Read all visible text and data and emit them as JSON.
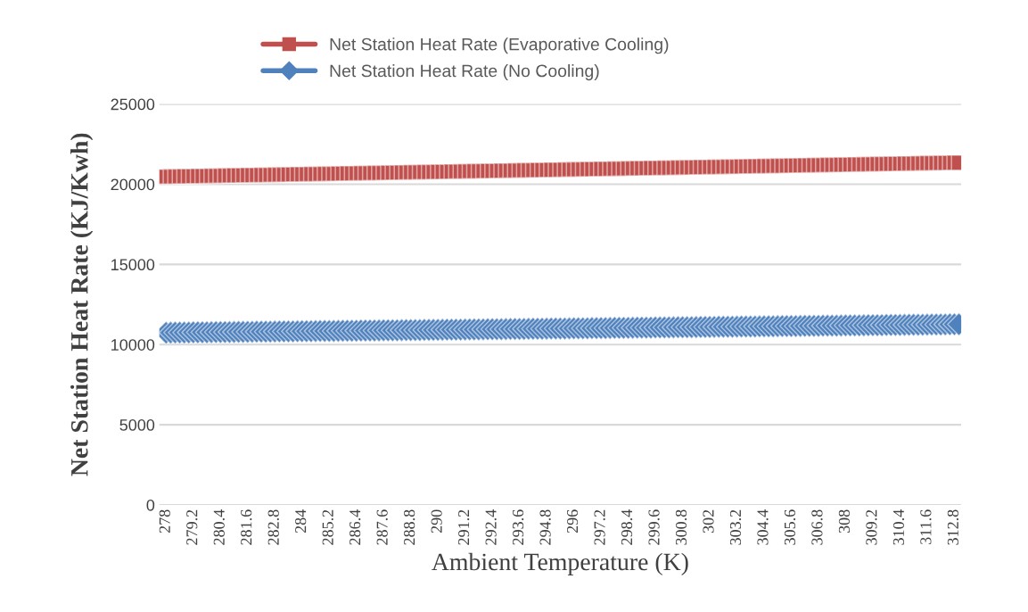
{
  "chart_data": {
    "type": "scatter",
    "xlabel": "Ambient Temperature (K)",
    "ylabel": "Net Station Heat Rate (KJ/Kwh)",
    "categories": [
      "278",
      null,
      null,
      null,
      null,
      null,
      "279.2",
      null,
      null,
      null,
      null,
      null,
      "280.4",
      null,
      null,
      null,
      null,
      null,
      "281.6",
      null,
      null,
      null,
      null,
      null,
      "282.8",
      null,
      null,
      null,
      null,
      null,
      "284",
      null,
      null,
      null,
      null,
      null,
      "285.2",
      null,
      null,
      null,
      null,
      null,
      "286.4",
      null,
      null,
      null,
      null,
      null,
      "287.6",
      null,
      null,
      null,
      null,
      null,
      "288.8",
      null,
      null,
      null,
      null,
      null,
      "290",
      null,
      null,
      null,
      null,
      null,
      "291.2",
      null,
      null,
      null,
      null,
      null,
      "292.4",
      null,
      null,
      null,
      null,
      null,
      "293.6",
      null,
      null,
      null,
      null,
      null,
      "294.8",
      null,
      null,
      null,
      null,
      null,
      "296",
      null,
      null,
      null,
      null,
      null,
      "297.2",
      null,
      null,
      null,
      null,
      null,
      "298.4",
      null,
      null,
      null,
      null,
      null,
      "299.6",
      null,
      null,
      null,
      null,
      null,
      "300.8",
      null,
      null,
      null,
      null,
      null,
      "302",
      null,
      null,
      null,
      null,
      null,
      "303.2",
      null,
      null,
      null,
      null,
      null,
      "304.4",
      null,
      null,
      null,
      null,
      null,
      "305.6",
      null,
      null,
      null,
      null,
      null,
      "306.8",
      null,
      null,
      null,
      null,
      null,
      "308",
      null,
      null,
      null,
      null,
      null,
      "309.2",
      null,
      null,
      null,
      null,
      null,
      "310.4",
      null,
      null,
      null,
      null,
      null,
      "311.6",
      null,
      null,
      null,
      null,
      null,
      "312.8",
      null
    ],
    "series": [
      {
        "name": "Net Station Heat Rate (Evaporative Cooling)",
        "color": "#c0504d",
        "marker": "square",
        "values": [
          20470,
          20475,
          20480,
          20485,
          20490,
          20495,
          20500,
          20505,
          20510,
          20515,
          20520,
          20525,
          20530,
          20535,
          20540,
          20545,
          20550,
          20555,
          20560,
          20565,
          20570,
          20575,
          20580,
          20585,
          20590,
          20595,
          20600,
          20605,
          20610,
          20615,
          20620,
          20625,
          20630,
          20635,
          20640,
          20645,
          20650,
          20655,
          20660,
          20665,
          20670,
          20675,
          20680,
          20685,
          20690,
          20695,
          20700,
          20705,
          20710,
          20715,
          20720,
          20725,
          20730,
          20735,
          20740,
          20745,
          20750,
          20755,
          20760,
          20765,
          20770,
          20775,
          20780,
          20785,
          20790,
          20795,
          20800,
          20805,
          20810,
          20815,
          20820,
          20825,
          20830,
          20835,
          20840,
          20845,
          20850,
          20855,
          20860,
          20865,
          20870,
          20875,
          20880,
          20885,
          20890,
          20895,
          20900,
          20905,
          20910,
          20915,
          20920,
          20925,
          20930,
          20935,
          20940,
          20945,
          20950,
          20955,
          20960,
          20965,
          20970,
          20975,
          20980,
          20985,
          20990,
          20995,
          21000,
          21005,
          21010,
          21015,
          21020,
          21025,
          21030,
          21035,
          21040,
          21045,
          21050,
          21055,
          21060,
          21065,
          21070,
          21075,
          21080,
          21085,
          21090,
          21095,
          21100,
          21105,
          21110,
          21115,
          21120,
          21125,
          21130,
          21135,
          21140,
          21145,
          21150,
          21155,
          21160,
          21165,
          21170,
          21175,
          21180,
          21185,
          21190,
          21195,
          21200,
          21205,
          21210,
          21215,
          21220,
          21225,
          21230,
          21235,
          21240,
          21245,
          21250,
          21255,
          21260,
          21265,
          21270,
          21275,
          21280,
          21285,
          21290,
          21295,
          21300,
          21305,
          21310,
          21315,
          21320,
          21325,
          21330,
          21335,
          21340,
          21345
        ]
      },
      {
        "name": "Net Station Heat Rate (No Cooling)",
        "color": "#4f81bd",
        "marker": "diamond",
        "values": [
          10740,
          10743,
          10746,
          10749,
          10752,
          10755,
          10758,
          10761,
          10764,
          10767,
          10770,
          10773,
          10776,
          10779,
          10782,
          10785,
          10788,
          10791,
          10794,
          10797,
          10800,
          10803,
          10806,
          10809,
          10812,
          10815,
          10818,
          10821,
          10824,
          10827,
          10830,
          10833,
          10836,
          10839,
          10842,
          10845,
          10848,
          10851,
          10854,
          10857,
          10860,
          10863,
          10866,
          10869,
          10872,
          10875,
          10878,
          10881,
          10884,
          10887,
          10890,
          10893,
          10896,
          10899,
          10902,
          10905,
          10908,
          10911,
          10914,
          10917,
          10920,
          10923,
          10926,
          10929,
          10932,
          10935,
          10938,
          10941,
          10944,
          10947,
          10950,
          10953,
          10956,
          10959,
          10962,
          10965,
          10968,
          10971,
          10974,
          10977,
          10980,
          10983,
          10986,
          10989,
          10992,
          10995,
          10998,
          11001,
          11004,
          11007,
          11010,
          11013,
          11016,
          11019,
          11022,
          11025,
          11028,
          11031,
          11034,
          11037,
          11040,
          11043,
          11046,
          11049,
          11052,
          11055,
          11058,
          11061,
          11064,
          11067,
          11070,
          11073,
          11076,
          11079,
          11082,
          11085,
          11088,
          11091,
          11094,
          11097,
          11100,
          11103,
          11106,
          11109,
          11112,
          11115,
          11118,
          11121,
          11124,
          11127,
          11130,
          11133,
          11136,
          11139,
          11142,
          11145,
          11148,
          11151,
          11154,
          11157,
          11160,
          11163,
          11166,
          11169,
          11172,
          11175,
          11178,
          11181,
          11184,
          11187,
          11190,
          11193,
          11196,
          11199,
          11202,
          11205,
          11208,
          11211,
          11214,
          11217,
          11220,
          11223,
          11226,
          11229,
          11232,
          11235,
          11238,
          11241,
          11244,
          11247,
          11250,
          11253,
          11256,
          11259,
          11262,
          11265
        ]
      }
    ],
    "ylim": [
      0,
      25000
    ],
    "yticks": [
      0,
      5000,
      10000,
      15000,
      20000,
      25000
    ],
    "grid": "y",
    "legend": "top"
  }
}
